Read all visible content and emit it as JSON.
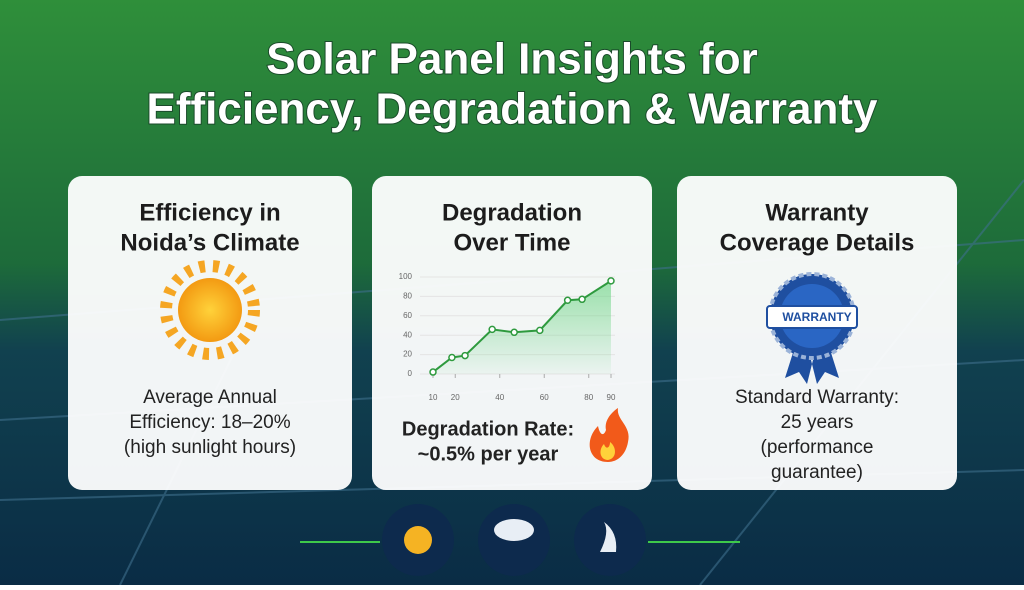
{
  "header": {
    "title_lines": [
      "Solar Panel Insights for",
      "Efficiency, Degradation & Warranty"
    ]
  },
  "cards": [
    {
      "title_lines": [
        "Efficiency in",
        "Noida’s Climate"
      ],
      "body_lines": [
        "Average Annual",
        "Efficiency: 18–20%",
        "(high sunlight hours)"
      ]
    },
    {
      "title_lines": [
        "Degradation",
        "Over Time"
      ],
      "body_lines": [
        "Degradation Rate:",
        "~0.5% per year"
      ]
    },
    {
      "title_lines": [
        "Warranty",
        "Coverage Details"
      ],
      "badge": "WARRANTY",
      "body_lines": [
        "Standard Warranty:",
        "25 years",
        "(performance",
        "guarantee)"
      ]
    }
  ],
  "chart_data": {
    "type": "area-line",
    "x": [
      10,
      18.5,
      24.4,
      36.6,
      46.5,
      58,
      70.5,
      77,
      90
    ],
    "values": [
      2,
      17,
      19,
      46,
      43,
      45,
      76,
      77,
      96
    ],
    "color": "#2e9a3e",
    "xlim": [
      10,
      90
    ],
    "ylim": [
      0,
      100
    ],
    "xticks": [
      10,
      20,
      40,
      60,
      80,
      90
    ],
    "yticks": [
      0,
      20,
      40,
      60,
      80,
      100
    ],
    "grid": true
  }
}
